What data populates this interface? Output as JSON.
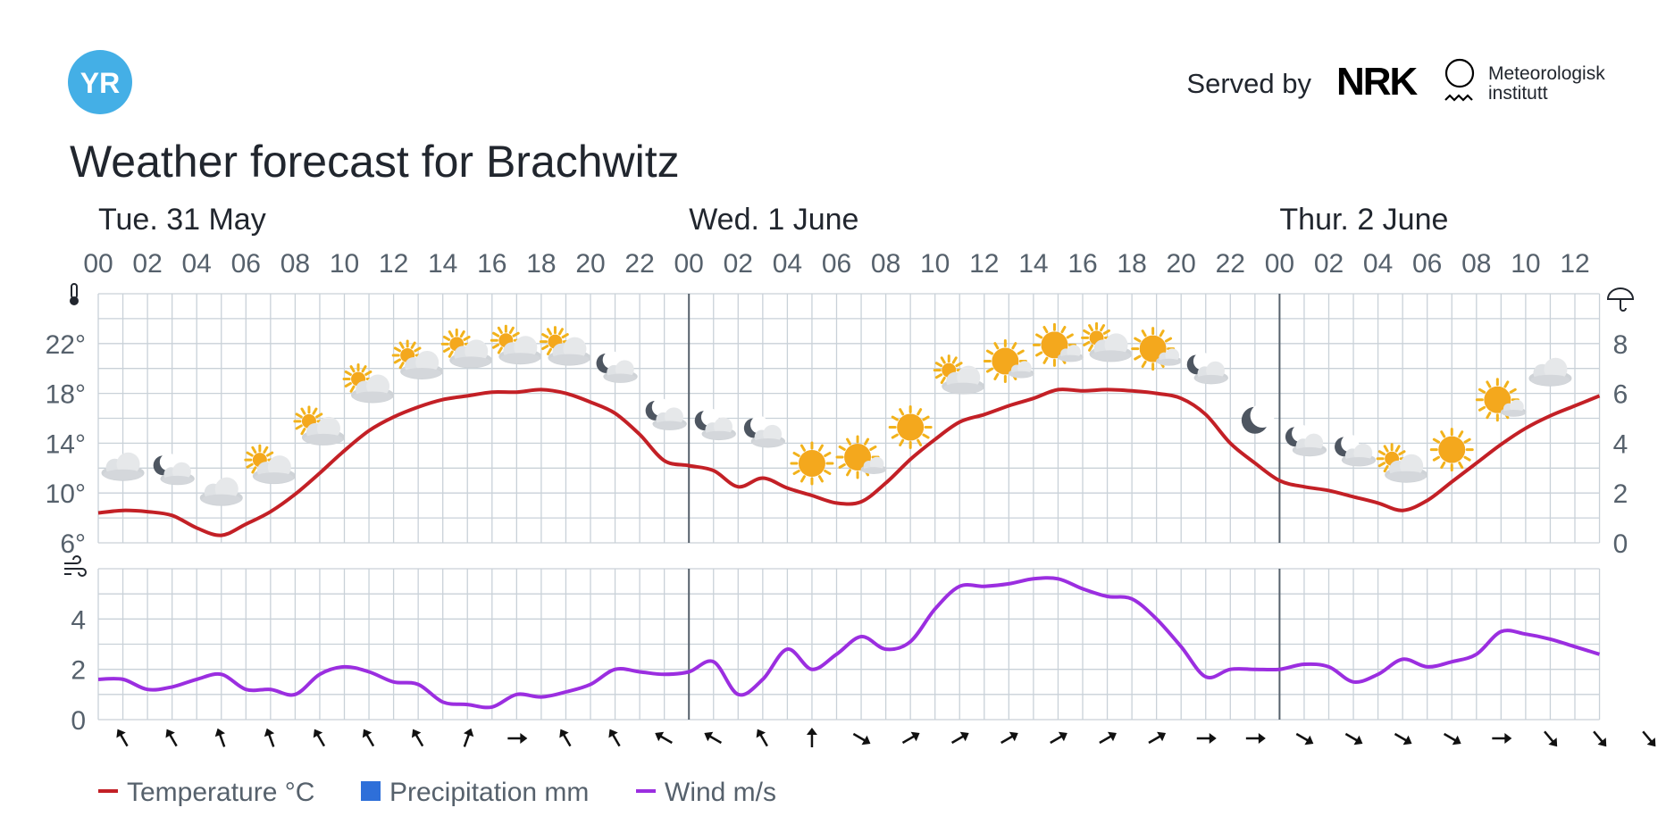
{
  "header": {
    "logo_text": "YR",
    "served_by": "Served by",
    "nrk": "NRK",
    "met_line1": "Meteorologisk",
    "met_line2": "institutt"
  },
  "title": "Weather forecast for Brachwitz",
  "legend": [
    {
      "label": "Temperature °C",
      "color": "#c32026"
    },
    {
      "label": "Precipitation mm",
      "color": "#2e6fd9"
    },
    {
      "label": "Wind m/s",
      "color": "#9b2ee0"
    }
  ],
  "chart_data": [
    {
      "type": "line",
      "name": "temperature-chart",
      "days": [
        {
          "label": "Tue. 31 May",
          "hour_index": 0
        },
        {
          "label": "Wed. 1 June",
          "hour_index": 24
        },
        {
          "label": "Thur. 2 June",
          "hour_index": 48
        }
      ],
      "hour_labels": [
        "00",
        "02",
        "04",
        "06",
        "08",
        "10",
        "12",
        "14",
        "16",
        "18",
        "20",
        "22",
        "00",
        "02",
        "04",
        "06",
        "08",
        "10",
        "12",
        "14",
        "16",
        "18",
        "20",
        "22",
        "00",
        "02",
        "04",
        "06",
        "08",
        "10",
        "12"
      ],
      "x_range": [
        0,
        61
      ],
      "ylim": [
        6,
        26
      ],
      "y_ticks": [
        6,
        10,
        14,
        18,
        22
      ],
      "y_tick_labels": [
        "6°",
        "10°",
        "14°",
        "18°",
        "22°"
      ],
      "y2lim": [
        0,
        10
      ],
      "y2_ticks": [
        0,
        2,
        4,
        6,
        8
      ],
      "y2_tick_labels": [
        "0",
        "2",
        "4",
        "6",
        "8"
      ],
      "left_icon": "thermometer-icon",
      "right_icon": "umbrella-icon",
      "series": [
        {
          "name": "Temperature °C",
          "color": "#c32026",
          "x": [
            0,
            1,
            2,
            3,
            4,
            5,
            6,
            7,
            8,
            9,
            10,
            11,
            12,
            13,
            14,
            15,
            16,
            17,
            18,
            19,
            20,
            21,
            22,
            23,
            24,
            25,
            26,
            27,
            28,
            29,
            30,
            31,
            32,
            33,
            34,
            35,
            36,
            37,
            38,
            39,
            40,
            41,
            42,
            43,
            44,
            45,
            46,
            47,
            48,
            49,
            50,
            51,
            52,
            53,
            54,
            55,
            56,
            57,
            58,
            59,
            60,
            61
          ],
          "values": [
            8.4,
            8.6,
            8.5,
            8.2,
            7.2,
            6.6,
            7.5,
            8.5,
            9.9,
            11.6,
            13.4,
            15.0,
            16.1,
            16.9,
            17.5,
            17.8,
            18.1,
            18.1,
            18.3,
            18.0,
            17.3,
            16.4,
            14.7,
            12.6,
            12.2,
            11.8,
            10.5,
            11.2,
            10.4,
            9.8,
            9.2,
            9.3,
            10.8,
            12.7,
            14.3,
            15.7,
            16.3,
            17.0,
            17.6,
            18.3,
            18.2,
            18.3,
            18.2,
            18.0,
            17.6,
            16.3,
            14.0,
            12.4,
            11.0,
            10.5,
            10.2,
            9.7,
            9.2,
            8.6,
            9.4,
            10.9,
            12.4,
            13.9,
            15.2,
            16.2,
            17.0,
            17.8
          ]
        },
        {
          "name": "Precipitation mm",
          "color": "#2e6fd9",
          "values": []
        }
      ],
      "weather_symbols": [
        {
          "hour": 1,
          "type": "cloud"
        },
        {
          "hour": 3,
          "type": "night-partly-cloudy"
        },
        {
          "hour": 5,
          "type": "cloud"
        },
        {
          "hour": 7,
          "type": "partly-cloudy"
        },
        {
          "hour": 9,
          "type": "partly-cloudy"
        },
        {
          "hour": 11,
          "type": "partly-cloudy"
        },
        {
          "hour": 13,
          "type": "partly-cloudy"
        },
        {
          "hour": 15,
          "type": "partly-cloudy"
        },
        {
          "hour": 17,
          "type": "partly-cloudy"
        },
        {
          "hour": 19,
          "type": "partly-cloudy"
        },
        {
          "hour": 21,
          "type": "night-partly-cloudy"
        },
        {
          "hour": 23,
          "type": "night-partly-cloudy"
        },
        {
          "hour": 25,
          "type": "night-partly-cloudy"
        },
        {
          "hour": 27,
          "type": "night-partly-cloudy"
        },
        {
          "hour": 29,
          "type": "sun"
        },
        {
          "hour": 31,
          "type": "fair"
        },
        {
          "hour": 33,
          "type": "sun"
        },
        {
          "hour": 35,
          "type": "partly-cloudy"
        },
        {
          "hour": 37,
          "type": "fair"
        },
        {
          "hour": 39,
          "type": "fair"
        },
        {
          "hour": 41,
          "type": "partly-cloudy"
        },
        {
          "hour": 43,
          "type": "fair"
        },
        {
          "hour": 45,
          "type": "night-partly-cloudy"
        },
        {
          "hour": 47,
          "type": "moon"
        },
        {
          "hour": 49,
          "type": "night-partly-cloudy"
        },
        {
          "hour": 51,
          "type": "night-partly-cloudy"
        },
        {
          "hour": 53,
          "type": "partly-cloudy"
        },
        {
          "hour": 55,
          "type": "sun"
        },
        {
          "hour": 57,
          "type": "fair"
        },
        {
          "hour": 59,
          "type": "cloud"
        }
      ]
    },
    {
      "type": "line",
      "name": "wind-chart",
      "x_range": [
        0,
        61
      ],
      "ylim": [
        0,
        6
      ],
      "y_ticks": [
        0,
        2,
        4
      ],
      "y_tick_labels": [
        "0",
        "2",
        "4"
      ],
      "left_icon": "wind-icon",
      "series": [
        {
          "name": "Wind m/s",
          "color": "#9b2ee0",
          "x": [
            0,
            1,
            2,
            3,
            4,
            5,
            6,
            7,
            8,
            9,
            10,
            11,
            12,
            13,
            14,
            15,
            16,
            17,
            18,
            19,
            20,
            21,
            22,
            23,
            24,
            25,
            26,
            27,
            28,
            29,
            30,
            31,
            32,
            33,
            34,
            35,
            36,
            37,
            38,
            39,
            40,
            41,
            42,
            43,
            44,
            45,
            46,
            47,
            48,
            49,
            50,
            51,
            52,
            53,
            54,
            55,
            56,
            57,
            58,
            59,
            60,
            61
          ],
          "values": [
            1.6,
            1.6,
            1.2,
            1.3,
            1.6,
            1.8,
            1.2,
            1.2,
            1.0,
            1.8,
            2.1,
            1.9,
            1.5,
            1.4,
            0.7,
            0.6,
            0.5,
            1.0,
            0.9,
            1.1,
            1.4,
            2.0,
            1.9,
            1.8,
            1.9,
            2.3,
            1.0,
            1.6,
            2.8,
            2.0,
            2.6,
            3.3,
            2.8,
            3.1,
            4.4,
            5.3,
            5.3,
            5.4,
            5.6,
            5.6,
            5.2,
            4.9,
            4.8,
            4.0,
            2.9,
            1.7,
            2.0,
            2.0,
            2.0,
            2.2,
            2.1,
            1.5,
            1.8,
            2.4,
            2.1,
            2.3,
            2.6,
            3.5,
            3.4,
            3.2,
            2.9,
            2.6
          ]
        }
      ],
      "wind_directions_deg": [
        330,
        330,
        340,
        340,
        330,
        330,
        330,
        20,
        90,
        330,
        330,
        300,
        300,
        330,
        0,
        120,
        60,
        60,
        60,
        60,
        60,
        60,
        90,
        90,
        120,
        120,
        120,
        120,
        90,
        140,
        140,
        140,
        140
      ]
    }
  ]
}
